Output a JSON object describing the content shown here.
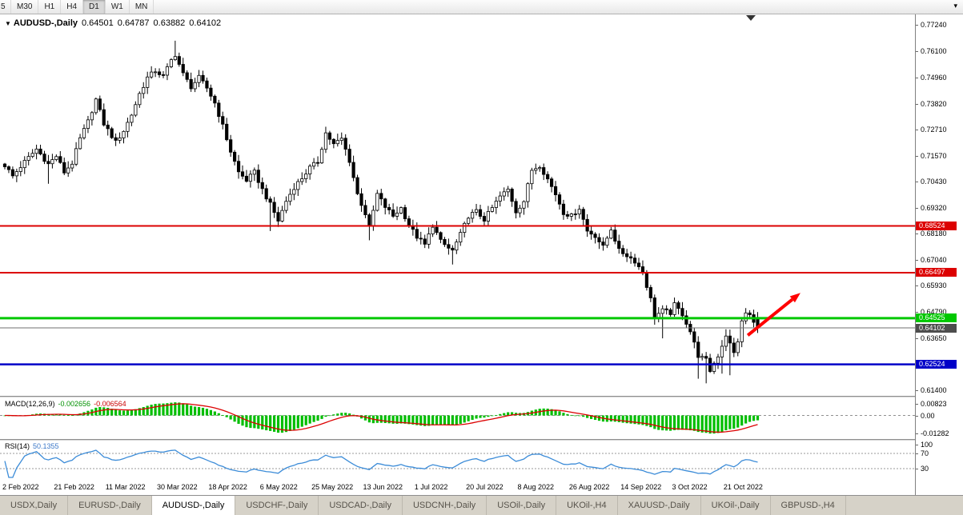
{
  "icons": {
    "chart_menu_icon": "▼",
    "toolbar_dropdown_icon": "▾"
  },
  "toolbar": {
    "timeframes": [
      "5",
      "M30",
      "H1",
      "H4",
      "D1",
      "W1",
      "MN"
    ],
    "active": "D1"
  },
  "chart": {
    "type": "candlestick",
    "symbol_label": "AUDUSD-,Daily",
    "ohlc": {
      "open": "0.64501",
      "high": "0.64787",
      "low": "0.63882",
      "close": "0.64102"
    },
    "price_axis": {
      "top_value": 0.7724,
      "bottom_value": 0.614,
      "ticks": [
        "0.77240",
        "0.76100",
        "0.74960",
        "0.73820",
        "0.72710",
        "0.71570",
        "0.70430",
        "0.69320",
        "0.68180",
        "0.67040",
        "0.65930",
        "0.64790",
        "0.63650",
        "0.61400"
      ]
    },
    "levels": [
      {
        "label": "0.68524",
        "value": 0.68524,
        "color": "#dc0000",
        "width": 2
      },
      {
        "label": "0.66497",
        "value": 0.66497,
        "color": "#dc0000",
        "width": 2
      },
      {
        "label": "0.64525",
        "value": 0.64525,
        "color": "#00c800",
        "width": 3
      },
      {
        "label": "0.62524",
        "value": 0.62524,
        "color": "#0000c8",
        "width": 2.5
      }
    ],
    "current_price": {
      "label": "0.64102",
      "value": 0.64102,
      "line_color": "#707070",
      "tag_color": "#4d4d4d"
    },
    "annotation_arrow": {
      "color": "#ff0000",
      "from_index": 187.5,
      "from_price": 0.6378,
      "to_index": 200.8,
      "to_price": 0.6562
    },
    "candles": {
      "count": 191,
      "anchors": [
        [
          0,
          0.7115
        ],
        [
          2,
          0.7068
        ],
        [
          5,
          0.713
        ],
        [
          8,
          0.7185
        ],
        [
          11,
          0.712
        ],
        [
          13,
          0.7155
        ],
        [
          15,
          0.7085
        ],
        [
          17,
          0.7125
        ],
        [
          19,
          0.723
        ],
        [
          21,
          0.7305
        ],
        [
          23,
          0.74
        ],
        [
          25,
          0.7295
        ],
        [
          28,
          0.7215
        ],
        [
          30,
          0.7265
        ],
        [
          32,
          0.7335
        ],
        [
          34,
          0.7425
        ],
        [
          36,
          0.7495
        ],
        [
          38,
          0.7525
        ],
        [
          40,
          0.75
        ],
        [
          42,
          0.757
        ],
        [
          43,
          0.7595
        ],
        [
          45,
          0.751
        ],
        [
          47,
          0.7455
        ],
        [
          49,
          0.7495
        ],
        [
          51,
          0.745
        ],
        [
          53,
          0.7385
        ],
        [
          55,
          0.7285
        ],
        [
          57,
          0.7175
        ],
        [
          59,
          0.7085
        ],
        [
          61,
          0.705
        ],
        [
          63,
          0.7085
        ],
        [
          65,
          0.701
        ],
        [
          67,
          0.6945
        ],
        [
          69,
          0.6875
        ],
        [
          71,
          0.696
        ],
        [
          73,
          0.702
        ],
        [
          75,
          0.706
        ],
        [
          77,
          0.7105
        ],
        [
          79,
          0.713
        ],
        [
          81,
          0.7255
        ],
        [
          83,
          0.7205
        ],
        [
          85,
          0.723
        ],
        [
          87,
          0.7135
        ],
        [
          89,
          0.699
        ],
        [
          91,
          0.6905
        ],
        [
          92,
          0.6845
        ],
        [
          94,
          0.699
        ],
        [
          96,
          0.6935
        ],
        [
          98,
          0.6895
        ],
        [
          100,
          0.693
        ],
        [
          102,
          0.6855
        ],
        [
          104,
          0.6805
        ],
        [
          106,
          0.677
        ],
        [
          108,
          0.6855
        ],
        [
          110,
          0.6785
        ],
        [
          112,
          0.6755
        ],
        [
          113,
          0.6745
        ],
        [
          115,
          0.6815
        ],
        [
          117,
          0.6895
        ],
        [
          119,
          0.6915
        ],
        [
          121,
          0.688
        ],
        [
          123,
          0.693
        ],
        [
          125,
          0.698
        ],
        [
          127,
          0.701
        ],
        [
          129,
          0.6915
        ],
        [
          131,
          0.696
        ],
        [
          133,
          0.7095
        ],
        [
          135,
          0.7115
        ],
        [
          137,
          0.7055
        ],
        [
          139,
          0.699
        ],
        [
          141,
          0.691
        ],
        [
          143,
          0.6895
        ],
        [
          145,
          0.693
        ],
        [
          147,
          0.683
        ],
        [
          149,
          0.681
        ],
        [
          151,
          0.676
        ],
        [
          153,
          0.684
        ],
        [
          155,
          0.6745
        ],
        [
          157,
          0.6725
        ],
        [
          159,
          0.67
        ],
        [
          161,
          0.665
        ],
        [
          163,
          0.6535
        ],
        [
          164,
          0.646
        ],
        [
          166,
          0.6485
        ],
        [
          168,
          0.6475
        ],
        [
          169,
          0.651
        ],
        [
          171,
          0.647
        ],
        [
          173,
          0.6395
        ],
        [
          175,
          0.629
        ],
        [
          177,
          0.627
        ],
        [
          178,
          0.6225
        ],
        [
          180,
          0.629
        ],
        [
          182,
          0.638
        ],
        [
          184,
          0.63
        ],
        [
          185,
          0.6355
        ],
        [
          186,
          0.6435
        ],
        [
          187,
          0.6475
        ],
        [
          188,
          0.6465
        ],
        [
          189,
          0.643
        ],
        [
          190,
          0.64102
        ]
      ],
      "spikes": [
        {
          "i": 11,
          "low": 0.7035
        },
        {
          "i": 43,
          "high": 0.7655
        },
        {
          "i": 67,
          "low": 0.683
        },
        {
          "i": 92,
          "low": 0.679
        },
        {
          "i": 113,
          "low": 0.6685
        },
        {
          "i": 166,
          "low": 0.6365
        },
        {
          "i": 175,
          "low": 0.619
        },
        {
          "i": 177,
          "low": 0.617
        },
        {
          "i": 181,
          "low": 0.6212
        },
        {
          "i": 183,
          "low": 0.6205
        }
      ]
    }
  },
  "indicators": {
    "macd": {
      "name": "MACD(12,26,9)",
      "value": "-0.002656",
      "signal_value": "-0.006564",
      "ticks": [
        "0.00823",
        "0.00",
        "-0.01282"
      ],
      "histogram_color": "#00be00",
      "signal_color": "#dc0000"
    },
    "rsi": {
      "name": "RSI(14)",
      "value": "50.1355",
      "ticks": [
        "100",
        "70",
        "30"
      ],
      "levels": [
        70,
        30
      ],
      "line_color": "#3c8cd8"
    }
  },
  "date_axis": {
    "labels": [
      {
        "text": "2 Feb 2022",
        "index": 0
      },
      {
        "text": "21 Feb 2022",
        "index": 13
      },
      {
        "text": "11 Mar 2022",
        "index": 26
      },
      {
        "text": "30 Mar 2022",
        "index": 39
      },
      {
        "text": "18 Apr 2022",
        "index": 52
      },
      {
        "text": "6 May 2022",
        "index": 65
      },
      {
        "text": "25 May 2022",
        "index": 78
      },
      {
        "text": "13 Jun 2022",
        "index": 91
      },
      {
        "text": "1 Jul 2022",
        "index": 104
      },
      {
        "text": "20 Jul 2022",
        "index": 117
      },
      {
        "text": "8 Aug 2022",
        "index": 130
      },
      {
        "text": "26 Aug 2022",
        "index": 143
      },
      {
        "text": "14 Sep 2022",
        "index": 156
      },
      {
        "text": "3 Oct 2022",
        "index": 169
      },
      {
        "text": "21 Oct 2022",
        "index": 182
      }
    ]
  },
  "tabs": {
    "active": "AUDUSD-,Daily",
    "items": [
      {
        "label": "USDX,Daily"
      },
      {
        "label": "EURUSD-,Daily"
      },
      {
        "label": "AUDUSD-,Daily"
      },
      {
        "label": "USDCHF-,Daily"
      },
      {
        "label": "USDCAD-,Daily"
      },
      {
        "label": "USDCNH-,Daily"
      },
      {
        "label": "USOil-,Daily"
      },
      {
        "label": "UKOil-,H4"
      },
      {
        "label": "XAUUSD-,Daily"
      },
      {
        "label": "UKOil-,Daily"
      },
      {
        "label": "GBPUSD-,H4"
      }
    ]
  }
}
